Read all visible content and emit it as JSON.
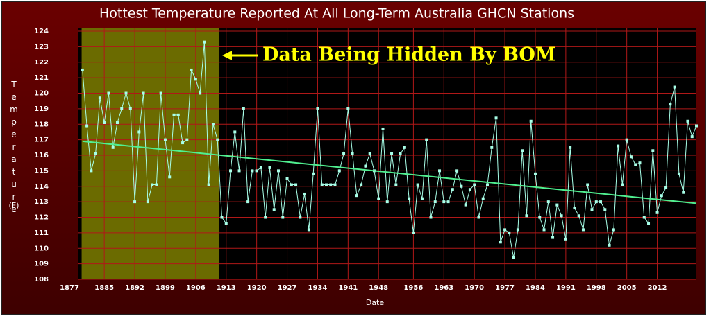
{
  "chart_data": {
    "type": "line",
    "title": "Hottest Temperature Reported At All Long-Term Australia GHCN Stations",
    "x_label": "Date",
    "y_label": "Temperature",
    "y_unit": "(F)",
    "annotation": "Data Being Hidden By BOM",
    "highlight": {
      "xlim": [
        1879.8,
        1911.4
      ],
      "color": "#6b6b00"
    },
    "x": [
      1880,
      1881,
      1882,
      1883,
      1884,
      1885,
      1886,
      1887,
      1888,
      1889,
      1890,
      1891,
      1892,
      1893,
      1894,
      1895,
      1896,
      1897,
      1898,
      1899,
      1900,
      1901,
      1902,
      1903,
      1904,
      1905,
      1906,
      1907,
      1908,
      1909,
      1910,
      1911,
      1912,
      1913,
      1914,
      1915,
      1916,
      1917,
      1918,
      1919,
      1920,
      1921,
      1922,
      1923,
      1924,
      1925,
      1926,
      1927,
      1928,
      1929,
      1930,
      1931,
      1932,
      1933,
      1934,
      1935,
      1936,
      1937,
      1938,
      1939,
      1940,
      1941,
      1942,
      1943,
      1944,
      1945,
      1946,
      1947,
      1948,
      1949,
      1950,
      1951,
      1952,
      1953,
      1954,
      1955,
      1956,
      1957,
      1958,
      1959,
      1960,
      1961,
      1962,
      1963,
      1964,
      1965,
      1966,
      1967,
      1968,
      1969,
      1970,
      1971,
      1972,
      1973,
      1974,
      1975,
      1976,
      1977,
      1978,
      1979,
      1980,
      1981,
      1982,
      1983,
      1984,
      1985,
      1986,
      1987,
      1988,
      1989,
      1990,
      1991,
      1992,
      1993,
      1994,
      1995,
      1996,
      1997,
      1998,
      1999,
      2000,
      2001,
      2002,
      2003,
      2004,
      2005,
      2006,
      2007,
      2008,
      2009,
      2010,
      2011,
      2012,
      2013,
      2014,
      2015,
      2016,
      2017,
      2018,
      2019,
      2020,
      2021
    ],
    "series": [
      {
        "name": "Hottest Temperature",
        "color": "#a8ffe8",
        "values": [
          121.5,
          117.9,
          115,
          116.1,
          119.7,
          118.1,
          120,
          116.5,
          118.1,
          119,
          120,
          119,
          113,
          117.5,
          120,
          113,
          114.1,
          114.1,
          120,
          117,
          114.6,
          118.6,
          118.6,
          116.8,
          117,
          121.5,
          120.9,
          120,
          123.3,
          114.1,
          118,
          117,
          112,
          111.6,
          115,
          117.5,
          115,
          119,
          113,
          115,
          115,
          115.2,
          112,
          115.2,
          112.5,
          115,
          112,
          114.5,
          114.1,
          114.1,
          112,
          113.5,
          111.2,
          114.8,
          119,
          114.1,
          114.1,
          114.1,
          114.1,
          115,
          116.1,
          119,
          116.1,
          113.4,
          114.1,
          115.3,
          116.1,
          115,
          113.2,
          117.7,
          113,
          116.1,
          114.1,
          116.1,
          116.5,
          113.2,
          111,
          114.1,
          113.2,
          117,
          112,
          113,
          115,
          113,
          113,
          113.8,
          115,
          114,
          112.8,
          113.8,
          114.1,
          112,
          113.2,
          114.1,
          116.5,
          118.4,
          110.4,
          111.2,
          111,
          109.4,
          111.2,
          116.3,
          112.1,
          118.2,
          114.8,
          112,
          111.2,
          113,
          110.7,
          112.8,
          112.1,
          110.6,
          116.5,
          112.6,
          112.1,
          111.2,
          114.1,
          112.5,
          113,
          113,
          112.5,
          110.2,
          111.2,
          116.6,
          114.1,
          117,
          115.9,
          115.4,
          115.5,
          112,
          111.6,
          116.3,
          112.3,
          113.4,
          113.9,
          119.3,
          120.4,
          114.8,
          113.6,
          118.2,
          117.2,
          117.9
        ]
      }
    ],
    "trend": {
      "color": "#50f090",
      "x": [
        1880,
        2021
      ],
      "values": [
        116.9,
        112.9
      ]
    },
    "xlim": [
      1877,
      2021
    ],
    "xticks": [
      1877,
      1885,
      1892,
      1899,
      1906,
      1913,
      1920,
      1927,
      1934,
      1941,
      1948,
      1956,
      1963,
      1970,
      1977,
      1984,
      1991,
      1998,
      2005,
      2012
    ],
    "ylim": [
      108,
      124
    ],
    "yticks": [
      108,
      109,
      110,
      111,
      112,
      113,
      114,
      115,
      116,
      117,
      118,
      119,
      120,
      121,
      122,
      123,
      124
    ],
    "grid": true
  }
}
